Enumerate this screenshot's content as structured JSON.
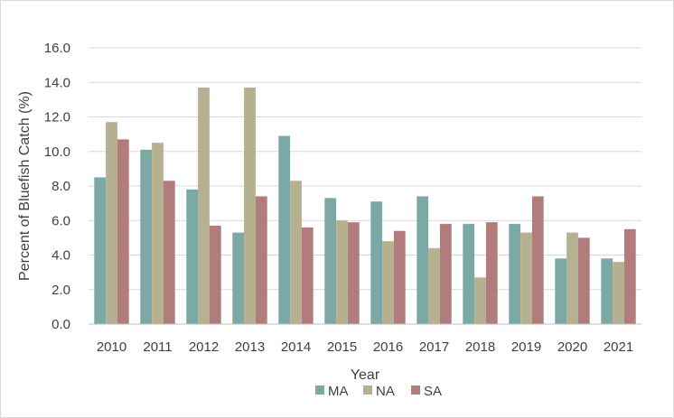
{
  "chart_data": {
    "type": "bar",
    "title": "",
    "xlabel": "Year",
    "ylabel": "Percent of Bluefish Catch (%)",
    "ylim": [
      0,
      16
    ],
    "yticks": [
      "0.0",
      "2.0",
      "4.0",
      "6.0",
      "8.0",
      "10.0",
      "12.0",
      "14.0",
      "16.0"
    ],
    "grid": true,
    "legend_position": "bottom",
    "categories": [
      "2010",
      "2011",
      "2012",
      "2013",
      "2014",
      "2015",
      "2016",
      "2017",
      "2018",
      "2019",
      "2020",
      "2021"
    ],
    "series": [
      {
        "name": "MA",
        "color": "#7aa9a6",
        "values": [
          8.5,
          10.1,
          7.8,
          5.3,
          10.9,
          7.3,
          7.1,
          7.4,
          5.8,
          5.8,
          3.8,
          3.8
        ]
      },
      {
        "name": "NA",
        "color": "#b5b08f",
        "values": [
          11.7,
          10.5,
          13.7,
          13.7,
          8.3,
          6.0,
          4.8,
          4.4,
          2.7,
          5.3,
          5.3,
          3.6
        ]
      },
      {
        "name": "SA",
        "color": "#b27c7c",
        "values": [
          10.7,
          8.3,
          5.7,
          7.4,
          5.6,
          5.9,
          5.4,
          5.8,
          5.9,
          7.4,
          5.0,
          5.5
        ]
      }
    ]
  }
}
